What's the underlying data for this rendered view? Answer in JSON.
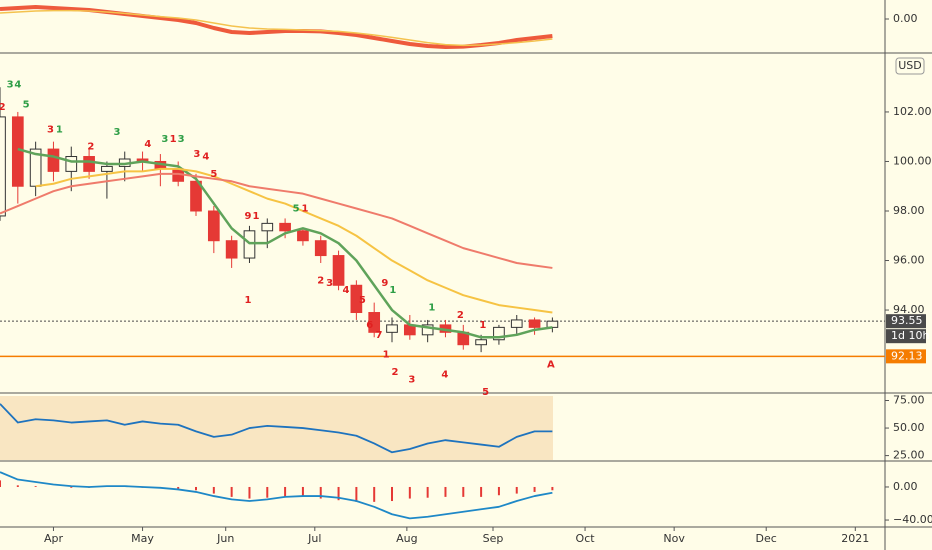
{
  "chart_data": [
    {
      "type": "line",
      "x": [
        0,
        6,
        12,
        18,
        24,
        30,
        36,
        42,
        48,
        54,
        60,
        66,
        72,
        78,
        84,
        90,
        96,
        102,
        108,
        114,
        120,
        126,
        132,
        138,
        144,
        150,
        156,
        162,
        168,
        174,
        180,
        186
      ],
      "xlim": [
        0,
        298
      ],
      "ylim": [
        -1.65,
        0.95
      ],
      "yticks": [
        {
          "value": 0,
          "label": "0.00"
        }
      ],
      "series": [
        {
          "name": "Oscillator",
          "color": "#ee5a3c",
          "width": 4,
          "values": [
            0.5,
            0.55,
            0.6,
            0.55,
            0.5,
            0.45,
            0.35,
            0.25,
            0.15,
            0.05,
            -0.05,
            -0.2,
            -0.45,
            -0.65,
            -0.7,
            -0.65,
            -0.6,
            -0.6,
            -0.62,
            -0.7,
            -0.8,
            -0.95,
            -1.1,
            -1.25,
            -1.35,
            -1.4,
            -1.38,
            -1.3,
            -1.2,
            -1.05,
            -0.95,
            -0.85
          ]
        },
        {
          "name": "Signal",
          "color": "#f4c24e",
          "width": 1.5,
          "values": [
            0.3,
            0.35,
            0.4,
            0.42,
            0.42,
            0.4,
            0.35,
            0.28,
            0.2,
            0.12,
            0.05,
            -0.05,
            -0.2,
            -0.35,
            -0.45,
            -0.5,
            -0.52,
            -0.55,
            -0.58,
            -0.62,
            -0.7,
            -0.8,
            -0.92,
            -1.05,
            -1.18,
            -1.28,
            -1.32,
            -1.3,
            -1.25,
            -1.18,
            -1.1,
            -1.0
          ]
        }
      ]
    },
    {
      "type": "candlestick",
      "unit": "USD",
      "x": [
        0,
        6,
        12,
        18,
        24,
        30,
        36,
        42,
        48,
        54,
        60,
        66,
        72,
        78,
        84,
        90,
        96,
        102,
        108,
        114,
        120,
        126,
        132,
        138,
        144,
        150,
        156,
        162,
        168,
        174,
        180,
        186
      ],
      "open": [
        97.8,
        101.8,
        99.0,
        100.5,
        99.6,
        100.2,
        99.6,
        99.8,
        100.1,
        100.0,
        99.7,
        99.2,
        98.0,
        96.8,
        96.1,
        97.2,
        97.5,
        97.2,
        96.8,
        96.2,
        95.0,
        93.9,
        93.1,
        93.4,
        93.0,
        93.4,
        93.1,
        92.6,
        92.8,
        93.3,
        93.6,
        93.3
      ],
      "high": [
        103.0,
        102.0,
        100.8,
        100.8,
        100.6,
        100.5,
        100.0,
        100.4,
        100.4,
        100.3,
        100.0,
        99.5,
        98.2,
        97.0,
        97.4,
        97.7,
        97.7,
        97.3,
        97.0,
        96.4,
        95.2,
        94.3,
        93.7,
        93.8,
        93.6,
        93.6,
        93.4,
        93.0,
        93.4,
        93.8,
        93.7,
        93.7
      ],
      "low": [
        97.6,
        98.3,
        98.6,
        99.2,
        98.8,
        99.3,
        98.5,
        99.2,
        99.6,
        99.0,
        99.0,
        97.8,
        96.3,
        95.7,
        95.9,
        96.5,
        96.9,
        96.6,
        95.9,
        94.8,
        93.6,
        92.9,
        92.7,
        92.8,
        92.7,
        92.9,
        92.4,
        92.3,
        92.6,
        93.0,
        93.0,
        93.1
      ],
      "close": [
        101.8,
        99.0,
        100.5,
        99.6,
        100.2,
        99.6,
        99.8,
        100.1,
        100.0,
        99.7,
        99.2,
        98.0,
        96.8,
        96.1,
        97.2,
        97.5,
        97.2,
        96.8,
        96.2,
        95.0,
        93.9,
        93.1,
        93.4,
        93.0,
        93.4,
        93.1,
        92.6,
        92.8,
        93.3,
        93.6,
        93.3,
        93.55
      ],
      "up_color": "#fffde8",
      "down_color": "#e53935",
      "xlim": [
        0,
        298
      ],
      "ylim": [
        90.69,
        104.3
      ],
      "yticks": [
        {
          "value": 94,
          "label": "94.00"
        },
        {
          "value": 96,
          "label": "96.00"
        },
        {
          "value": 98,
          "label": "98.00"
        },
        {
          "value": 100,
          "label": "100.00"
        },
        {
          "value": 102,
          "label": "102.00"
        }
      ],
      "series": [
        {
          "name": "MA short",
          "color": "#5fa35a",
          "width": 2.5,
          "values": [
            null,
            100.5,
            100.3,
            100.2,
            100.0,
            100.0,
            99.9,
            99.9,
            100.0,
            99.9,
            99.8,
            99.3,
            98.3,
            97.3,
            96.7,
            96.7,
            97.1,
            97.3,
            97.1,
            96.7,
            96.0,
            95.0,
            94.0,
            93.4,
            93.3,
            93.2,
            93.1,
            92.9,
            92.9,
            93.0,
            93.2,
            93.3
          ]
        },
        {
          "name": "MA mid",
          "color": "#f6c343",
          "width": 2,
          "values": [
            null,
            null,
            99.0,
            99.1,
            99.3,
            99.4,
            99.5,
            99.6,
            99.6,
            99.7,
            99.7,
            99.6,
            99.4,
            99.1,
            98.8,
            98.5,
            98.3,
            98.0,
            97.7,
            97.4,
            97.0,
            96.5,
            96.0,
            95.6,
            95.2,
            94.9,
            94.6,
            94.4,
            94.2,
            94.1,
            94.0,
            93.9
          ]
        },
        {
          "name": "MA long",
          "color": "#ef7b6b",
          "width": 2,
          "values": [
            97.9,
            98.2,
            98.5,
            98.8,
            99.0,
            99.1,
            99.2,
            99.3,
            99.4,
            99.5,
            99.5,
            99.4,
            99.3,
            99.2,
            99.0,
            98.9,
            98.8,
            98.7,
            98.5,
            98.3,
            98.1,
            97.9,
            97.7,
            97.4,
            97.1,
            96.8,
            96.5,
            96.3,
            96.1,
            95.9,
            95.8,
            95.7
          ]
        }
      ],
      "hlines": [
        {
          "value": 93.55,
          "color": "#4a4a4a",
          "countdown": "1d 10h"
        },
        {
          "value": 92.13,
          "color": "#f57c00"
        }
      ],
      "annotations": [
        {
          "text": "2",
          "x": 0.7,
          "y": 102.2,
          "color": "#e02020"
        },
        {
          "text": "3",
          "x": 3.4,
          "y": 103.1,
          "color": "#2e9e46"
        },
        {
          "text": "4",
          "x": 6,
          "y": 103.1,
          "color": "#2e9e46"
        },
        {
          "text": "5",
          "x": 8.8,
          "y": 102.3,
          "color": "#2e9e46"
        },
        {
          "text": "3",
          "x": 17,
          "y": 101.3,
          "color": "#e02020"
        },
        {
          "text": "1",
          "x": 20,
          "y": 101.3,
          "color": "#2e9e46"
        },
        {
          "text": "2",
          "x": 30.6,
          "y": 100.6,
          "color": "#e02020"
        },
        {
          "text": "3",
          "x": 39.4,
          "y": 101.2,
          "color": "#2e9e46"
        },
        {
          "text": "4",
          "x": 49.8,
          "y": 100.7,
          "color": "#e02020"
        },
        {
          "text": "3",
          "x": 55.5,
          "y": 100.9,
          "color": "#2e9e46"
        },
        {
          "text": "1",
          "x": 58.3,
          "y": 100.9,
          "color": "#e02020"
        },
        {
          "text": "3",
          "x": 61,
          "y": 100.9,
          "color": "#2e9e46"
        },
        {
          "text": "3",
          "x": 66.3,
          "y": 100.3,
          "color": "#e02020"
        },
        {
          "text": "4",
          "x": 69.3,
          "y": 100.2,
          "color": "#e02020"
        },
        {
          "text": "5",
          "x": 72,
          "y": 99.5,
          "color": "#e02020"
        },
        {
          "text": "9",
          "x": 83.5,
          "y": 97.8,
          "color": "#e02020"
        },
        {
          "text": "1",
          "x": 86.2,
          "y": 97.8,
          "color": "#e02020"
        },
        {
          "text": "5",
          "x": 99.7,
          "y": 98.1,
          "color": "#2e9e46"
        },
        {
          "text": "1",
          "x": 102.7,
          "y": 98.1,
          "color": "#e02020"
        },
        {
          "text": "9",
          "x": 129.6,
          "y": 95.1,
          "color": "#e02020"
        },
        {
          "text": "1",
          "x": 132.3,
          "y": 94.8,
          "color": "#2e9e46"
        },
        {
          "text": "1",
          "x": 145.4,
          "y": 94.1,
          "color": "#2e9e46"
        },
        {
          "text": "2",
          "x": 155,
          "y": 93.8,
          "color": "#e02020"
        },
        {
          "text": "1",
          "x": 162.6,
          "y": 93.4,
          "color": "#e02020"
        },
        {
          "text": "1",
          "x": 83.5,
          "y": 94.4,
          "color": "#e02020"
        },
        {
          "text": "2",
          "x": 108,
          "y": 95.2,
          "color": "#e02020"
        },
        {
          "text": "3",
          "x": 111,
          "y": 95.1,
          "color": "#e02020"
        },
        {
          "text": "4",
          "x": 116.5,
          "y": 94.8,
          "color": "#e02020"
        },
        {
          "text": "5",
          "x": 122,
          "y": 94.4,
          "color": "#e02020"
        },
        {
          "text": "6",
          "x": 124.5,
          "y": 93.4,
          "color": "#e02020"
        },
        {
          "text": "7",
          "x": 127.6,
          "y": 93.0,
          "color": "#e02020"
        },
        {
          "text": "1",
          "x": 130,
          "y": 92.2,
          "color": "#e02020"
        },
        {
          "text": "2",
          "x": 133,
          "y": 91.5,
          "color": "#e02020"
        },
        {
          "text": "3",
          "x": 138.7,
          "y": 91.2,
          "color": "#e02020"
        },
        {
          "text": "4",
          "x": 149.8,
          "y": 91.4,
          "color": "#e02020"
        },
        {
          "text": "5",
          "x": 163.5,
          "y": 90.7,
          "color": "#e02020"
        },
        {
          "text": "A",
          "x": 185.5,
          "y": 91.8,
          "color": "#e02020"
        }
      ]
    },
    {
      "type": "line",
      "x": [
        0,
        6,
        12,
        18,
        24,
        30,
        36,
        42,
        48,
        54,
        60,
        66,
        72,
        78,
        84,
        90,
        96,
        102,
        108,
        114,
        120,
        126,
        132,
        138,
        144,
        150,
        156,
        162,
        168,
        174,
        180,
        186
      ],
      "xlim": [
        0,
        298
      ],
      "ylim": [
        21,
        80
      ],
      "yticks": [
        {
          "value": 25,
          "label": "25.00"
        },
        {
          "value": 50,
          "label": "50.00"
        },
        {
          "value": 75,
          "label": "75.00"
        }
      ],
      "series": [
        {
          "name": "RSI",
          "color": "#1e73be",
          "width": 1.8,
          "values": [
            72,
            55,
            58,
            57,
            55,
            56,
            57,
            53,
            56,
            54,
            53,
            47,
            42,
            44,
            50,
            52,
            51,
            50,
            48,
            46,
            43,
            36,
            28,
            31,
            36,
            39,
            37,
            35,
            33,
            42,
            47,
            47
          ]
        }
      ]
    },
    {
      "type": "line",
      "x": [
        0,
        6,
        12,
        18,
        24,
        30,
        36,
        42,
        48,
        54,
        60,
        66,
        72,
        78,
        84,
        90,
        96,
        102,
        108,
        114,
        120,
        126,
        132,
        138,
        144,
        150,
        156,
        162,
        168,
        174,
        180,
        186
      ],
      "xlim": [
        0,
        298
      ],
      "ylim": [
        -46,
        29
      ],
      "yticks": [
        {
          "value": 0,
          "label": "0.00"
        },
        {
          "value": -40,
          "label": "−40.00"
        }
      ],
      "xticks": [
        {
          "value": 18,
          "label": "Apr"
        },
        {
          "value": 48,
          "label": "May"
        },
        {
          "value": 76,
          "label": "Jun"
        },
        {
          "value": 106,
          "label": "Jul"
        },
        {
          "value": 137,
          "label": "Aug"
        },
        {
          "value": 166,
          "label": "Sep"
        },
        {
          "value": 197,
          "label": "Oct"
        },
        {
          "value": 227,
          "label": "Nov"
        },
        {
          "value": 258,
          "label": "Dec"
        },
        {
          "value": 288,
          "label": "2021"
        }
      ],
      "series": [
        {
          "name": "Histogram",
          "type": "bar",
          "color": "#e53935",
          "values": [
            8,
            2,
            1,
            0,
            -1,
            -1,
            0,
            0,
            -1,
            -1,
            -2,
            -4,
            -8,
            -12,
            -14,
            -13,
            -12,
            -12,
            -14,
            -16,
            -18,
            -18,
            -17,
            -14,
            -13,
            -12,
            -12,
            -12,
            -10,
            -8,
            -6,
            -4
          ]
        },
        {
          "name": "MACD",
          "color": "#1e88c7",
          "width": 1.8,
          "values": [
            18,
            9,
            6,
            3,
            1,
            0,
            1,
            1,
            0,
            -1,
            -3,
            -6,
            -11,
            -15,
            -17,
            -15,
            -12,
            -11,
            -11,
            -13,
            -17,
            -24,
            -33,
            -38,
            -36,
            -33,
            -30,
            -27,
            -24,
            -17,
            -11,
            -7
          ]
        }
      ]
    }
  ]
}
